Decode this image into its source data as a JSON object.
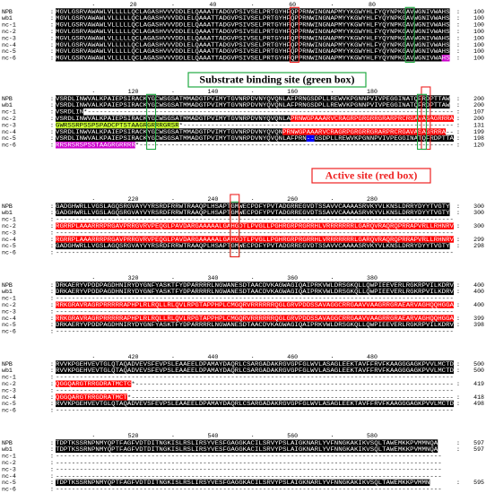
{
  "separator": ":",
  "ruler_mark": ".",
  "annotations": {
    "substrate": "Substrate binding site (green box)",
    "active": "Active site (red box)"
  },
  "blocks": [
    {
      "ruler": [
        20,
        40,
        60,
        80
      ],
      "rows": [
        {
          "name": "NPB",
          "segments": [
            {
              "text": "MGVLGSRVAWAWLVLLLLLQCLAGASHVVVDDLELQAAATTADGVPSIVSELPRTGYHFQPPRNWINGNAPMYYKGWYHLFYQYNPKGAVWGNIVWAHS",
              "bg": "#000000",
              "fg": "#ffffff"
            }
          ],
          "end": 100
        },
        {
          "name": "wb1",
          "segments": [
            {
              "text": "MGVLGSRVAWAWLVLLLLLQCLAGASHVVVDDLELQAAATTADGVPSIVSELPRTGYHFQPPRNWINGNAPMYYKGWYHLFYQYNPKGAVWGNIVWAHS",
              "bg": "#000000",
              "fg": "#ffffff"
            }
          ],
          "end": 100
        },
        {
          "name": "nc-1",
          "segments": [
            {
              "text": "MGVLGSRVAWAWLVLLLLLQCLAGASHVVVDDLELQAAATTADGVPSIVSELPRTGYHFQPPRNWINGNAPMYYKGWYHLFYQYNPKGAVWGNIVWAHS",
              "bg": "#000000",
              "fg": "#ffffff"
            }
          ],
          "end": 100
        },
        {
          "name": "nc-2",
          "segments": [
            {
              "text": "MGVLGSRVAWAWLVLLLLLQCLAGASHVVVDDLELQAAATTADGVPSIVSELPRTGYHFQPPRNWINGNAPMYYKGWYHLFYQYNPKGAVWGNIVWAHS",
              "bg": "#000000",
              "fg": "#ffffff"
            }
          ],
          "end": 100
        },
        {
          "name": "nc-3",
          "segments": [
            {
              "text": "MGVLGSRVAWAWLVLLLLLQCLAGASHVVVDDLELQAAATTADGVPSIVSELPRTGYHFQPPRNWINGNAPMYYKGWYHLFYQYNPKGAVWGNIVWAHS",
              "bg": "#000000",
              "fg": "#ffffff"
            }
          ],
          "end": 100
        },
        {
          "name": "nc-4",
          "segments": [
            {
              "text": "MGVLGSRVAWAWLVLLLLLQCLAGASHVVVDDLELQAAATTADGVPSIVSELPRTGYHFQPPRNWINGNAPMYYKGWYHLFYQYNPKGAVWGNIVWAHS",
              "bg": "#000000",
              "fg": "#ffffff"
            }
          ],
          "end": 100
        },
        {
          "name": "nc-5",
          "segments": [
            {
              "text": "MGVLGSRVAWAWLVLLLLLQCLAGASHVVVDDLELQAAATTADGVPSIVSELPRTGYHFQPPRNWINGNAPMYYKGWYHLFYQYNPKGAVWGNIVWAHS",
              "bg": "#000000",
              "fg": "#ffffff"
            }
          ],
          "end": 100
        },
        {
          "name": "nc-6",
          "segments": [
            {
              "text": "MGVLGSRVAWAWLVLLLLLQCLAGASHVVVDDLELQAAATTADGVPSIVSELPRTGYHFQPPRNWINGNAPMYYKGWYHLFYQYNPKGAVWGNIVWA",
              "bg": "#000000",
              "fg": "#ffffff"
            },
            {
              "text": "HS",
              "bg": "#cc00cc",
              "fg": "#ffffff"
            }
          ],
          "end": 100
        }
      ]
    },
    {
      "ruler": [
        120,
        140,
        160,
        180
      ],
      "rows": [
        {
          "name": "NPB",
          "segments": [
            {
              "text": "VSRDLINWVALKPAIEPSIRACKYGCWSGSATMMADGTPVIMYTGVNRPDVNYQVQNLAFPRNGSDPLLREWVKPGNNPVIVPEGGINATQFRDPTTAW",
              "bg": "#000000",
              "fg": "#ffffff"
            }
          ],
          "end": 200
        },
        {
          "name": "wb1",
          "segments": [
            {
              "text": "VSRDLINWVALKPAIEPSIRACKYGCWSGSATMMADGTPVIMYTGVNRPDVNYQVQNLAFPRNGSDPLLREWVKPGNNPVIVPEGGINATQFRDPTTAW",
              "bg": "#000000",
              "fg": "#ffffff"
            }
          ],
          "end": 200
        },
        {
          "name": "nc-1",
          "segments": [
            {
              "text": "VSRDLIN",
              "bg": "#000000",
              "fg": "#ffffff"
            },
            {
              "text": "*--------------------------------------------------------------------------------------------"
            }
          ],
          "end": 107
        },
        {
          "name": "nc-2",
          "segments": [
            {
              "text": "VSRDLINWVALKPAIEPSIRACKYGCWSGSATMMADGTPVIMYTGVNRPDVNYQVQNLA",
              "bg": "#000000",
              "fg": "#ffffff"
            },
            {
              "text": "PRNWGPAAARVCRAGRPGRGRRGRARPRCRGAVASAGRRRA",
              "bg": "#ff0000",
              "fg": "#ffffff"
            }
          ],
          "end": 200
        },
        {
          "name": "nc-3",
          "segments": [
            {
              "text": "GWRSSRPSSPSPADCPTSTAAGRGRRRGRSR",
              "bg": "#ccff33",
              "fg": "#000000"
            },
            {
              "text": "*--------------------------------------------------------------------"
            }
          ],
          "end": 131
        },
        {
          "name": "nc-4",
          "segments": [
            {
              "text": "VSRDLINWVALKPAIEPSIRACKYGCWSGSATMMADGTPVIMYTGVNRPDVNYQVQN",
              "bg": "#000000",
              "fg": "#ffffff"
            },
            {
              "text": "PRNWGPAAARVCRAGRPGRGRRGRARPRCRGAVASAGRRRA",
              "bg": "#ff0000",
              "fg": "#ffffff"
            },
            {
              "text": "--"
            }
          ],
          "end": 199
        },
        {
          "name": "nc-5",
          "segments": [
            {
              "text": "VSRDLINWVALKPAIEPSIRACKYGCWSGSATMMADGTPVIMYTGVNRPDVNYQVQNLAFPRN",
              "bg": "#000000",
              "fg": "#ffffff"
            },
            {
              "text": "--",
              "bg": "#0000ff",
              "fg": "#ffffff"
            },
            {
              "text": "GSDPLLREWVKPGNNPVIVPEGGINATQFRDPTTA",
              "bg": "#000000",
              "fg": "#ffffff"
            }
          ],
          "end": 198
        },
        {
          "name": "nc-6",
          "segments": [
            {
              "text": "RRSRSRSPSSTAAGRGRRRR",
              "bg": "#cc00cc",
              "fg": "#ffffff"
            },
            {
              "text": "*-------------------------------------------------------------------------------"
            }
          ],
          "end": 120
        }
      ]
    },
    {
      "ruler": [
        220,
        240,
        260,
        280
      ],
      "rows": [
        {
          "name": "NPB",
          "segments": [
            {
              "text": "GADGHWRLLVGSLAGQSRGVAYVYRSRDFRRWTRAAQPLHSAPTGMWECPDFYPVTADGRREGVDTSSAVVCAAAASRVKYVLKNSLDRRYDYYTVGTY",
              "bg": "#000000",
              "fg": "#ffffff"
            }
          ],
          "end": 300
        },
        {
          "name": "wb1",
          "segments": [
            {
              "text": "GADGHWRLLVGSLAGQSRGVAYVYRSRDFRRWTRAAQPLHSAPTGMWECPDFYPVTADGRREGVDTSSAVVCAAAASRVKYVLKNSLDRRYDYYTVGTY",
              "bg": "#000000",
              "fg": "#ffffff"
            }
          ],
          "end": 300
        },
        {
          "name": "nc-1",
          "segments": [
            {
              "text": "----------------------------------------------------------------------------------------------------"
            }
          ]
        },
        {
          "name": "nc-2",
          "segments": [
            {
              "text": "RGRRPLAAARRRPRGAVPRRGVRVPEQGLPAVDARGAAAAALGAHGDTLPVGLLPGHRGRPRGRRHLVRRRRRRRLGARQVRAQRQPRRAPVRLLRHNRV",
              "bg": "#ff0000",
              "fg": "#ffffff"
            }
          ],
          "end": 300
        },
        {
          "name": "nc-3",
          "segments": [
            {
              "text": "----------------------------------------------------------------------------------------------------"
            }
          ]
        },
        {
          "name": "nc-4",
          "segments": [
            {
              "text": "RGRRPLAAARRRPRGAVPRRGVRVPEQGLPAVDARGAAAAALGAHGDTLPVGLLPGHRGRPRGRRHLVRRRRRRRLGARQVRAQRQPRRAPVRLLRHNRV",
              "bg": "#ff0000",
              "fg": "#ffffff"
            }
          ],
          "end": 299
        },
        {
          "name": "nc-5",
          "segments": [
            {
              "text": "GADGHWRLLVGSLAGQSRGVAYVYRSRDFRRWTRAAQPLHSAPTGMWECPDFYPVTADGRREGVDTSSAVVCAAAASRVKYVLKNSLDRRYDYYTVGTY",
              "bg": "#000000",
              "fg": "#ffffff"
            }
          ],
          "end": 298
        },
        {
          "name": "nc-6",
          "segments": [
            {
              "text": "----------------------------------------------------------------------------------------------------"
            }
          ]
        }
      ]
    },
    {
      "ruler": [
        320,
        340,
        360,
        380
      ],
      "rows": [
        {
          "name": "NPB",
          "segments": [
            {
              "text": "DRKAERYVPDDPAGDHNIRYDYGNFYASKTFYDPARRRRLNGWANESDTAACDVKAGWAGIQAIPRKVWLDRSGKQLLQWPIEEVERLRGKRPVILKDRV",
              "bg": "#000000",
              "fg": "#ffffff"
            }
          ],
          "end": 400
        },
        {
          "name": "wb1",
          "segments": [
            {
              "text": "DRKAERYVPDDPAGDHNIRYDYGNFYASKTFYDPARRRRLNGWANESDTAACDVKAGWAGIQAIPRKVWLDRSGKQLLQWPIEEVERLRGKRPVILKDRV",
              "bg": "#000000",
              "fg": "#ffffff"
            }
          ],
          "end": 400
        },
        {
          "name": "nc-1",
          "segments": [
            {
              "text": "----------------------------------------------------------------------------------------------------"
            }
          ]
        },
        {
          "name": "nc-2",
          "segments": [
            {
              "text": "RRKGRAVRAGRPRRRRRAPHPLRLRQLLRLQVLRPGTAPPHPLCMGQRVRRRRRRQGLGRVPDDSSAVAGGCRRGAAVVAAGRRGRAEARVAGHQQHGGA",
              "bg": "#ff0000",
              "fg": "#ffffff"
            }
          ],
          "end": 400
        },
        {
          "name": "nc-3",
          "segments": [
            {
              "text": "----------------------------------------------------------------------------------------------------"
            }
          ]
        },
        {
          "name": "nc-4",
          "segments": [
            {
              "text": "RRKGRAVRAGRPRRRRRAPHPLRLRQLLRLQVLRPGTAPPHPLCMGQRVRRRRRRQGLGRVPDDSSAVAGGCRRGAAVVAAGRRGRAEARVAGHQQHGGA",
              "bg": "#ff0000",
              "fg": "#ffffff"
            }
          ],
          "end": 399
        },
        {
          "name": "nc-5",
          "segments": [
            {
              "text": "DRKAERYVPDDPAGDHNIRYDYGNFYASKTFYDPARRRRLNGWANESDTAACDVKAGWAGIQAIPRKVWLDRSGKQLLQWPIEEVERLRGKRPVILKDRV",
              "bg": "#000000",
              "fg": "#ffffff"
            }
          ],
          "end": 398
        },
        {
          "name": "nc-6",
          "segments": [
            {
              "text": "----------------------------------------------------------------------------------------------------"
            }
          ]
        }
      ]
    },
    {
      "ruler": [
        420,
        440,
        460,
        480
      ],
      "rows": [
        {
          "name": "NPB",
          "segments": [
            {
              "text": "RVVKPGEHVEVTGLQTAQADVEVSFEVPSLEAAEELDPAMAYDAQRLCSARGADAKRGVGPFGLWVLASAGLEEKTAVFFRVFKAAGGGAGKPVVLMCTD",
              "bg": "#000000",
              "fg": "#ffffff"
            }
          ],
          "end": 500
        },
        {
          "name": "wb1",
          "segments": [
            {
              "text": "RVVKPGEHVEVTGLQTAQADVEVSFEVPSLEAAEELDPAMAYDAQRLCSARGADAKRGVGPFGLWVLASAGLEEKTAVFFRVFKAAGGGAGKPVVLMCTD",
              "bg": "#000000",
              "fg": "#ffffff"
            }
          ],
          "end": 500
        },
        {
          "name": "nc-1",
          "segments": [
            {
              "text": "----------------------------------------------------------------------------------------------------"
            }
          ]
        },
        {
          "name": "nc-2",
          "segments": [
            {
              "text": "QGGQARGTRRGDRATMCTC",
              "bg": "#ff0000",
              "fg": "#ffffff"
            },
            {
              "text": "*--------------------------------------------------------------------------------"
            }
          ],
          "end": 419
        },
        {
          "name": "nc-3",
          "segments": [
            {
              "text": "----------------------------------------------------------------------------------------------------"
            }
          ]
        },
        {
          "name": "nc-4",
          "segments": [
            {
              "text": "QGGQARGTRRGDRATMCT",
              "bg": "#ff0000",
              "fg": "#ffffff"
            },
            {
              "text": "*---------------------------------------------------------------------------------"
            }
          ],
          "end": 418
        },
        {
          "name": "nc-5",
          "segments": [
            {
              "text": "RVVKPGEHVEVTGLQTAQADVEVSFEVPSLEAAEELDPAMAYDAQRLCSARGADAKRGVGPFGLWVLASAGLEEKTAVFFRVFKAAGGGAGKPVVLMCTD",
              "bg": "#000000",
              "fg": "#ffffff"
            }
          ],
          "end": 498
        },
        {
          "name": "nc-6",
          "segments": [
            {
              "text": "----------------------------------------------------------------------------------------------------"
            }
          ]
        }
      ]
    },
    {
      "ruler": [
        520,
        540,
        560,
        580
      ],
      "rows": [
        {
          "name": "NPB",
          "segments": [
            {
              "text": "TDPTKSSRNPNMYQPTFAGFVDTDITNGKISLRSLIRSYVESFGAGGKACILSRVYPSLAIGKNARLYVFNNGKAKIKVSQLTAWEMKKPVMMNQA",
              "bg": "#000000",
              "fg": "#ffffff"
            }
          ],
          "end": 597
        },
        {
          "name": "wb1",
          "segments": [
            {
              "text": "TDPTKSSRNPNMYQPTFAGFVDTDITNGKISLRSLIRSYVESFGAGGKACILSRVYPSLAIGKNARLYVFNNGKAKIKVSQLTAWEMKKPVMMNQA",
              "bg": "#000000",
              "fg": "#ffffff"
            }
          ],
          "end": 597
        },
        {
          "name": "nc-1",
          "segments": [
            {
              "text": "-------------------------------------------------------------------------------------------------"
            }
          ]
        },
        {
          "name": "nc-2",
          "segments": [
            {
              "text": "-------------------------------------------------------------------------------------------------"
            }
          ]
        },
        {
          "name": "nc-3",
          "segments": [
            {
              "text": "-------------------------------------------------------------------------------------------------"
            }
          ]
        },
        {
          "name": "nc-4",
          "segments": [
            {
              "text": "-------------------------------------------------------------------------------------------------"
            }
          ]
        },
        {
          "name": "nc-5",
          "segments": [
            {
              "text": "TDPTKSSRNPNMYQPTFAGFVDTDITNGKISLRSLIRSYVESFGAGGKACILSRVYPSLAIGKNARLYVFNNGKAKIKVSQLTAWEMKKPVMMN",
              "bg": "#000000",
              "fg": "#ffffff"
            }
          ],
          "end": 595
        },
        {
          "name": "nc-6",
          "segments": [
            {
              "text": "-------------------------------------------------------------------------------------------------"
            }
          ]
        }
      ]
    }
  ]
}
